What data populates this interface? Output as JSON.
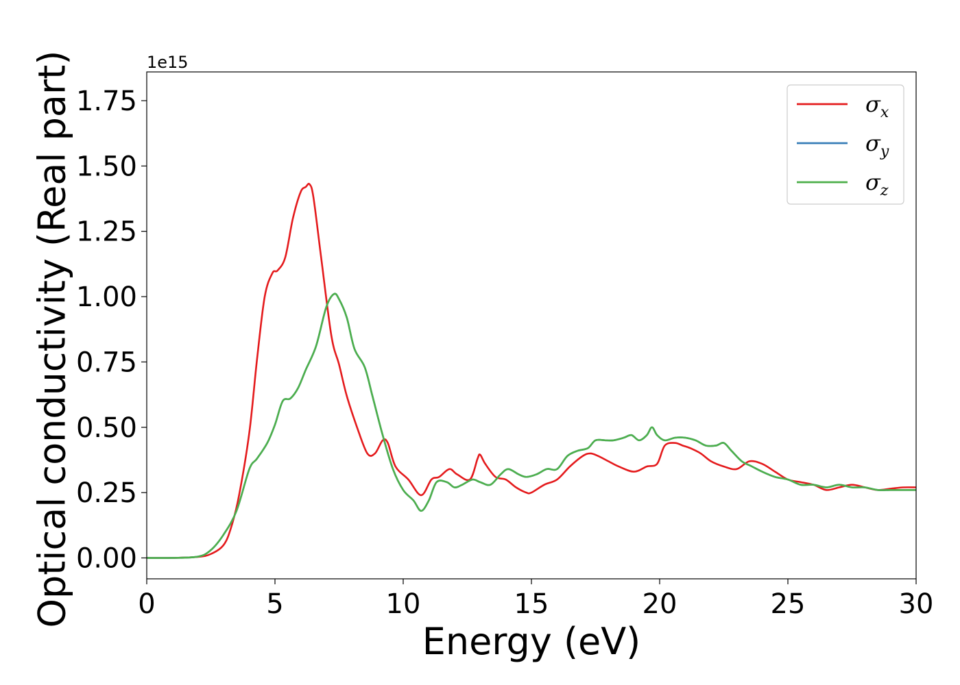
{
  "chart_data": {
    "type": "line",
    "xlabel": "Energy (eV)",
    "ylabel": "Optical conductivity (Real part)",
    "y_offset_label": "1e15",
    "xlim": [
      0,
      30
    ],
    "ylim": [
      -0.08,
      1.86
    ],
    "xticks": [
      0,
      5,
      10,
      15,
      20,
      25,
      30
    ],
    "yticks": [
      0.0,
      0.25,
      0.5,
      0.75,
      1.0,
      1.25,
      1.5,
      1.75
    ],
    "xtick_labels": [
      "0",
      "5",
      "10",
      "15",
      "20",
      "25",
      "30"
    ],
    "ytick_labels": [
      "0.00",
      "0.25",
      "0.50",
      "0.75",
      "1.00",
      "1.25",
      "1.50",
      "1.75"
    ],
    "grid": false,
    "legend_position": "top-right",
    "series": [
      {
        "name": "σx",
        "legend_base": "σ",
        "legend_sub": "x",
        "color": "#e41a1c",
        "x": [
          0,
          1,
          2,
          2.5,
          3,
          3.3,
          3.6,
          4,
          4.3,
          4.6,
          4.9,
          5.1,
          5.4,
          5.7,
          6.0,
          6.2,
          6.35,
          6.5,
          6.8,
          7.2,
          7.5,
          7.8,
          8.2,
          8.6,
          8.9,
          9.2,
          9.4,
          9.7,
          10.2,
          10.7,
          11.1,
          11.4,
          11.8,
          12.1,
          12.6,
          12.9,
          13.0,
          13.2,
          13.6,
          14.0,
          14.4,
          14.8,
          15.0,
          15.5,
          16.0,
          16.5,
          17.0,
          17.3,
          17.6,
          18.0,
          18.4,
          19.0,
          19.5,
          19.9,
          20.2,
          20.6,
          20.9,
          21.2,
          21.6,
          22.0,
          22.5,
          23.0,
          23.5,
          24.0,
          24.5,
          25.0,
          25.5,
          26.0,
          26.5,
          27.0,
          27.5,
          28.0,
          28.5,
          29.0,
          29.5,
          30.0
        ],
        "y": [
          0.0,
          0.0,
          0.004,
          0.015,
          0.05,
          0.12,
          0.24,
          0.48,
          0.76,
          1.0,
          1.09,
          1.1,
          1.15,
          1.3,
          1.4,
          1.42,
          1.43,
          1.38,
          1.15,
          0.85,
          0.74,
          0.62,
          0.5,
          0.4,
          0.4,
          0.45,
          0.44,
          0.35,
          0.3,
          0.24,
          0.3,
          0.31,
          0.34,
          0.32,
          0.3,
          0.38,
          0.395,
          0.36,
          0.31,
          0.3,
          0.27,
          0.25,
          0.25,
          0.28,
          0.3,
          0.35,
          0.39,
          0.4,
          0.39,
          0.37,
          0.35,
          0.33,
          0.35,
          0.36,
          0.43,
          0.44,
          0.43,
          0.42,
          0.4,
          0.37,
          0.35,
          0.34,
          0.37,
          0.36,
          0.33,
          0.3,
          0.29,
          0.28,
          0.26,
          0.27,
          0.28,
          0.27,
          0.26,
          0.265,
          0.27,
          0.27
        ]
      },
      {
        "name": "σy",
        "legend_base": "σ",
        "legend_sub": "y",
        "color": "#377eb8",
        "x": [
          0,
          1,
          2,
          2.5,
          3,
          3.5,
          4,
          4.3,
          4.7,
          5.0,
          5.3,
          5.6,
          5.9,
          6.2,
          6.6,
          7.0,
          7.3,
          7.5,
          7.8,
          8.1,
          8.5,
          8.8,
          9.2,
          9.6,
          10.0,
          10.4,
          10.7,
          11.0,
          11.3,
          11.7,
          12.0,
          12.3,
          12.7,
          13.0,
          13.4,
          13.8,
          14.1,
          14.5,
          14.8,
          15.2,
          15.6,
          16.0,
          16.4,
          16.8,
          17.2,
          17.5,
          17.9,
          18.2,
          18.6,
          18.9,
          19.2,
          19.5,
          19.7,
          19.9,
          20.2,
          20.6,
          21.0,
          21.4,
          21.8,
          22.2,
          22.5,
          22.8,
          23.2,
          23.6,
          24.0,
          24.5,
          25.0,
          25.5,
          26.0,
          26.5,
          27.0,
          27.5,
          28.0,
          28.5,
          29.0,
          29.5,
          30.0
        ],
        "y": [
          0.0,
          0.0,
          0.005,
          0.03,
          0.09,
          0.18,
          0.34,
          0.38,
          0.44,
          0.51,
          0.6,
          0.61,
          0.65,
          0.72,
          0.81,
          0.96,
          1.01,
          0.99,
          0.92,
          0.8,
          0.73,
          0.62,
          0.47,
          0.34,
          0.26,
          0.22,
          0.18,
          0.22,
          0.29,
          0.29,
          0.27,
          0.28,
          0.3,
          0.29,
          0.28,
          0.32,
          0.34,
          0.32,
          0.31,
          0.32,
          0.34,
          0.34,
          0.39,
          0.41,
          0.42,
          0.45,
          0.45,
          0.45,
          0.46,
          0.47,
          0.45,
          0.47,
          0.5,
          0.47,
          0.45,
          0.46,
          0.46,
          0.45,
          0.43,
          0.43,
          0.44,
          0.41,
          0.37,
          0.35,
          0.33,
          0.31,
          0.3,
          0.28,
          0.28,
          0.27,
          0.28,
          0.27,
          0.27,
          0.26,
          0.26,
          0.26,
          0.26
        ]
      },
      {
        "name": "σz",
        "legend_base": "σ",
        "legend_sub": "z",
        "color": "#4daf4a",
        "x": [
          0,
          1,
          2,
          2.5,
          3,
          3.5,
          4,
          4.3,
          4.7,
          5.0,
          5.3,
          5.6,
          5.9,
          6.2,
          6.6,
          7.0,
          7.3,
          7.5,
          7.8,
          8.1,
          8.5,
          8.8,
          9.2,
          9.6,
          10.0,
          10.4,
          10.7,
          11.0,
          11.3,
          11.7,
          12.0,
          12.3,
          12.7,
          13.0,
          13.4,
          13.8,
          14.1,
          14.5,
          14.8,
          15.2,
          15.6,
          16.0,
          16.4,
          16.8,
          17.2,
          17.5,
          17.9,
          18.2,
          18.6,
          18.9,
          19.2,
          19.5,
          19.7,
          19.9,
          20.2,
          20.6,
          21.0,
          21.4,
          21.8,
          22.2,
          22.5,
          22.8,
          23.2,
          23.6,
          24.0,
          24.5,
          25.0,
          25.5,
          26.0,
          26.5,
          27.0,
          27.5,
          28.0,
          28.5,
          29.0,
          29.5,
          30.0
        ],
        "y": [
          0.0,
          0.0,
          0.005,
          0.03,
          0.09,
          0.18,
          0.34,
          0.38,
          0.44,
          0.51,
          0.6,
          0.61,
          0.65,
          0.72,
          0.81,
          0.96,
          1.01,
          0.99,
          0.92,
          0.8,
          0.73,
          0.62,
          0.47,
          0.34,
          0.26,
          0.22,
          0.18,
          0.22,
          0.29,
          0.29,
          0.27,
          0.28,
          0.3,
          0.29,
          0.28,
          0.32,
          0.34,
          0.32,
          0.31,
          0.32,
          0.34,
          0.34,
          0.39,
          0.41,
          0.42,
          0.45,
          0.45,
          0.45,
          0.46,
          0.47,
          0.45,
          0.47,
          0.5,
          0.47,
          0.45,
          0.46,
          0.46,
          0.45,
          0.43,
          0.43,
          0.44,
          0.41,
          0.37,
          0.35,
          0.33,
          0.31,
          0.3,
          0.28,
          0.28,
          0.27,
          0.28,
          0.27,
          0.27,
          0.26,
          0.26,
          0.26,
          0.26
        ]
      }
    ]
  }
}
